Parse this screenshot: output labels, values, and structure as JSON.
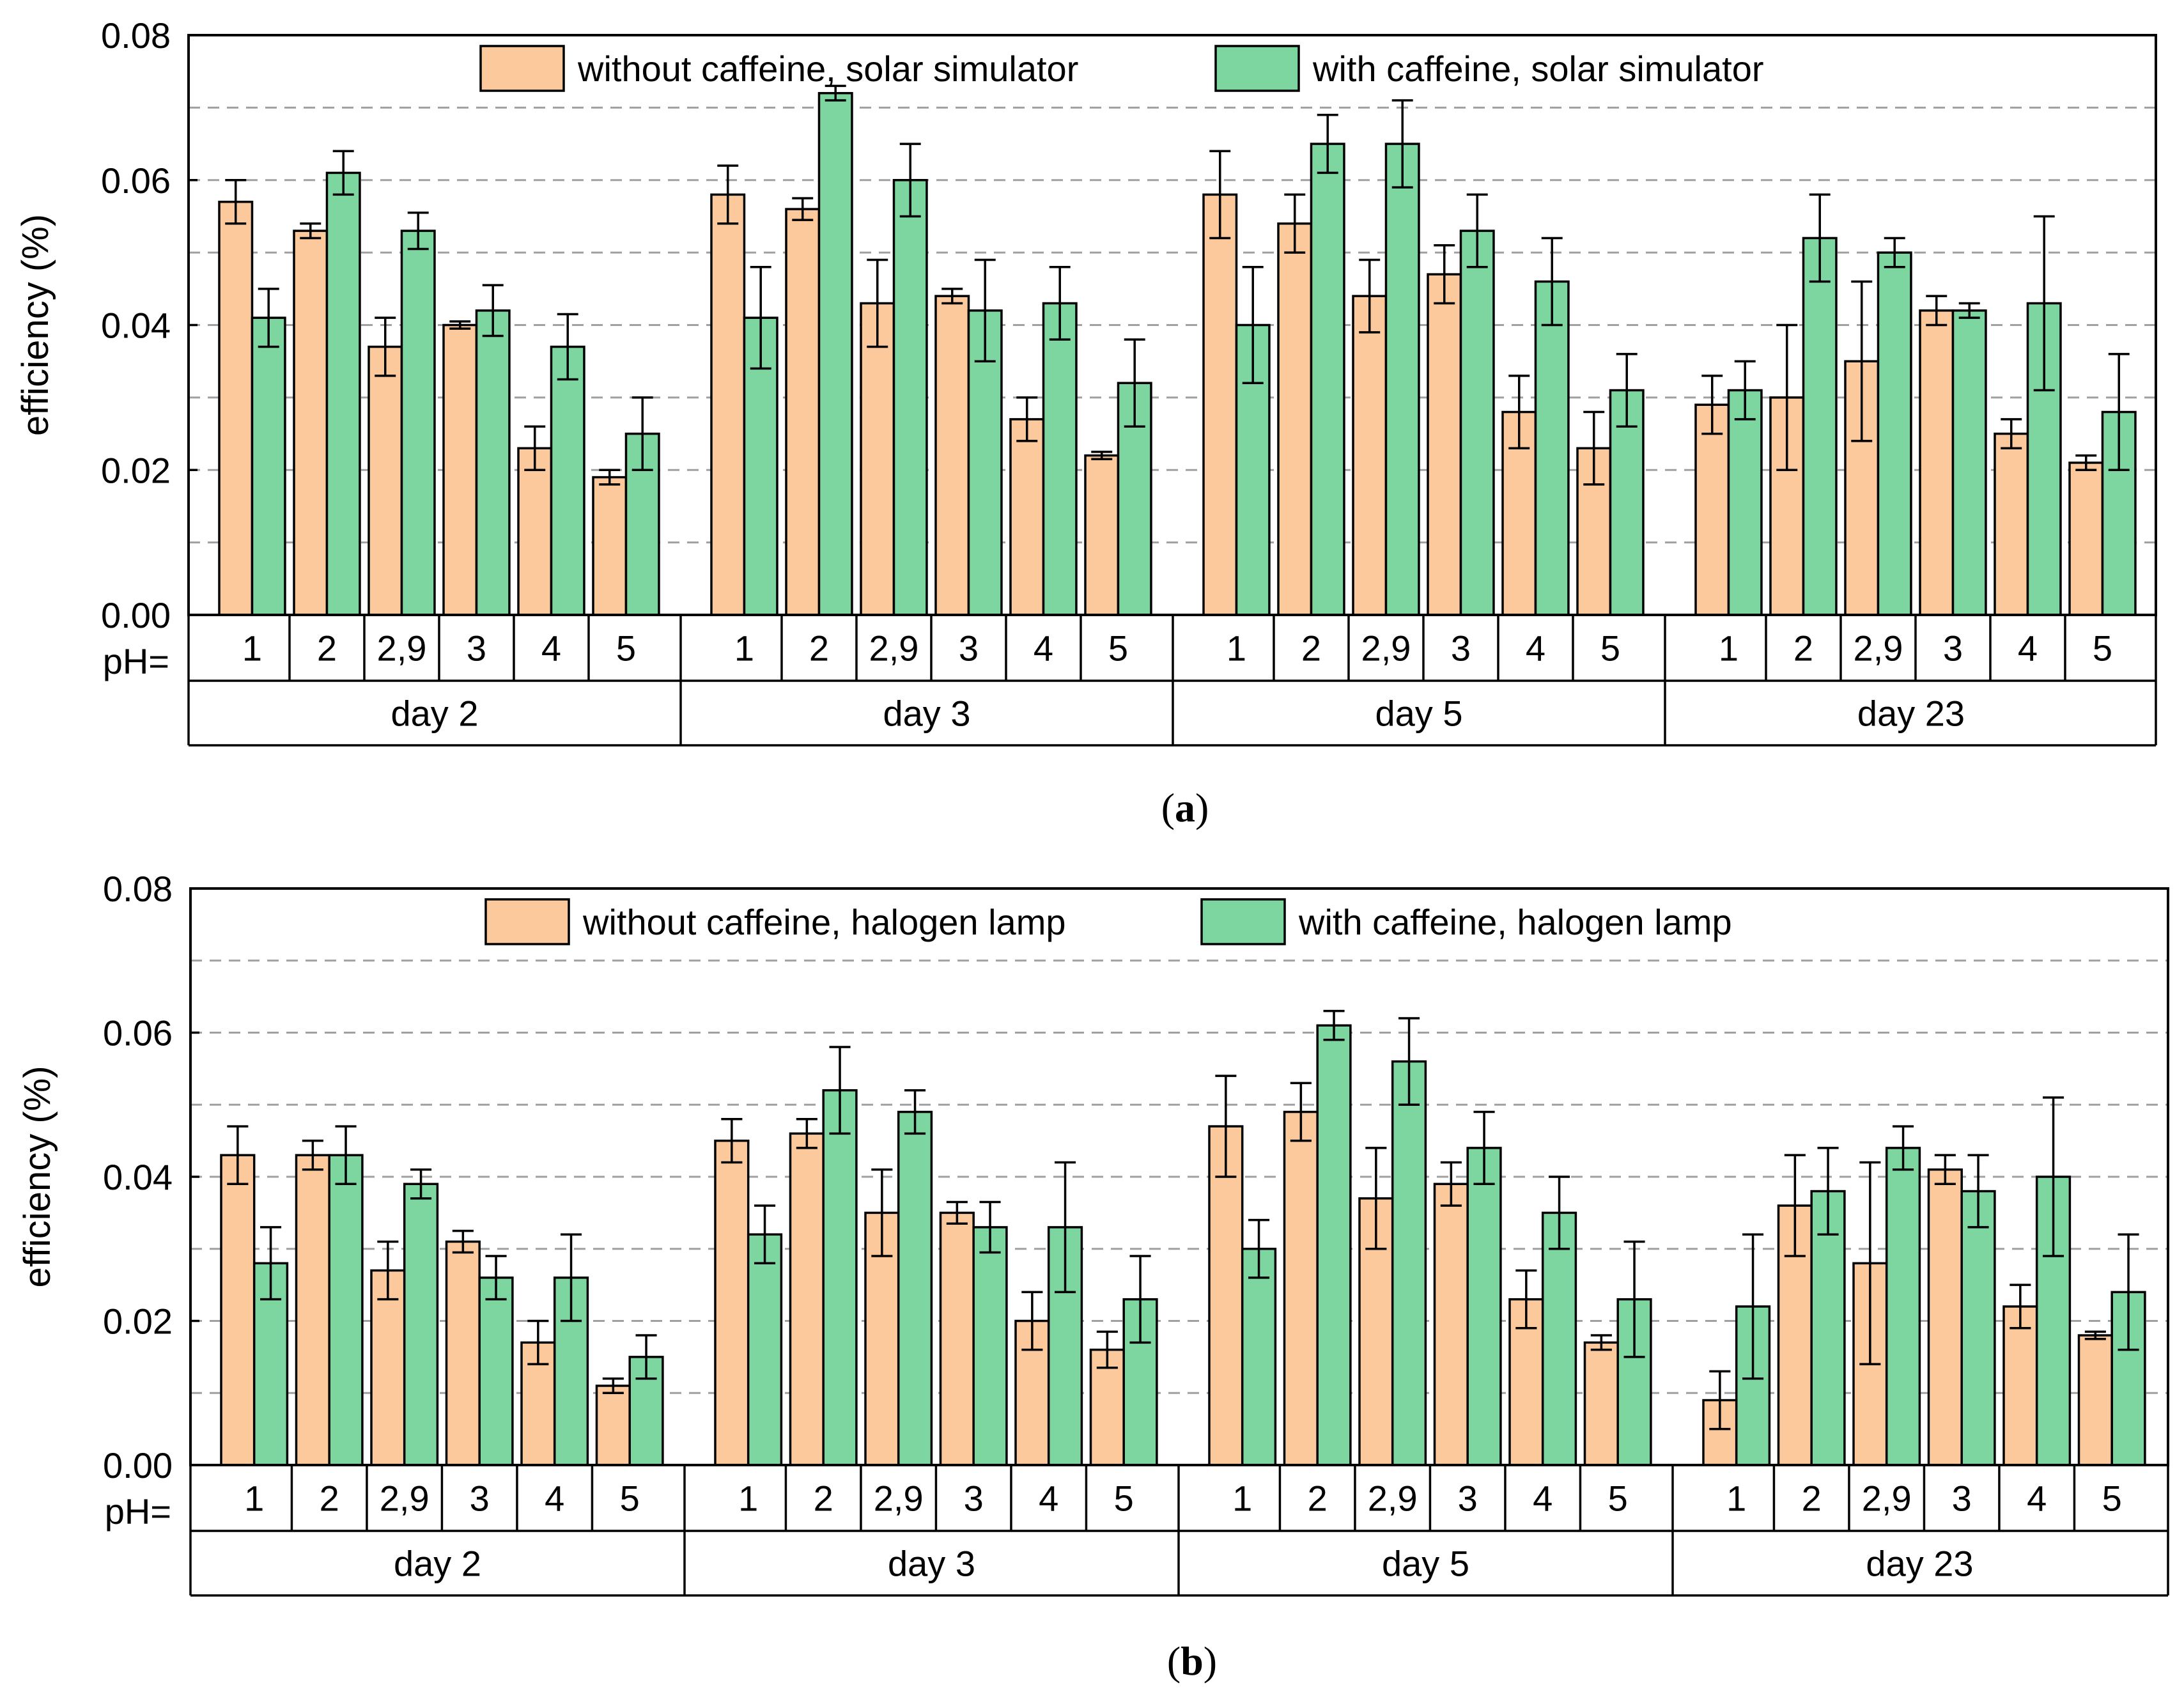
{
  "chart_data": [
    {
      "type": "bar",
      "panel": "(a)",
      "caption_open": "(",
      "caption_letter": "a",
      "caption_close": ")",
      "ylabel": "efficiency (%)",
      "ylim": [
        0,
        0.08
      ],
      "yticks": [
        "0.00",
        "0.02",
        "0.04",
        "0.06",
        "0.08"
      ],
      "ph_label": "pH=",
      "categories": [
        "1",
        "2",
        "2,9",
        "3",
        "4",
        "5"
      ],
      "groups": [
        "day 2",
        "day 3",
        "day 5",
        "day 23"
      ],
      "colors": {
        "without": "#fcc99c",
        "with": "#7dd69f"
      },
      "series": [
        {
          "name": "without caffeine, solar simulator",
          "key": "without",
          "values": [
            [
              0.057,
              0.053,
              0.037,
              0.04,
              0.023,
              0.019
            ],
            [
              0.058,
              0.056,
              0.043,
              0.044,
              0.027,
              0.022
            ],
            [
              0.058,
              0.054,
              0.044,
              0.047,
              0.028,
              0.023
            ],
            [
              0.029,
              0.03,
              0.035,
              0.042,
              0.025,
              0.021
            ]
          ],
          "errors": [
            [
              0.003,
              0.001,
              0.004,
              0.0005,
              0.003,
              0.001
            ],
            [
              0.004,
              0.0015,
              0.006,
              0.001,
              0.003,
              0.0005
            ],
            [
              0.006,
              0.004,
              0.005,
              0.004,
              0.005,
              0.005
            ],
            [
              0.004,
              0.01,
              0.011,
              0.002,
              0.002,
              0.001
            ]
          ]
        },
        {
          "name": "with caffeine, solar simulator",
          "key": "with",
          "values": [
            [
              0.041,
              0.061,
              0.053,
              0.042,
              0.037,
              0.025
            ],
            [
              0.041,
              0.072,
              0.06,
              0.042,
              0.043,
              0.032
            ],
            [
              0.04,
              0.065,
              0.065,
              0.053,
              0.046,
              0.031
            ],
            [
              0.031,
              0.052,
              0.05,
              0.042,
              0.043,
              0.028
            ]
          ],
          "errors": [
            [
              0.004,
              0.003,
              0.0025,
              0.0035,
              0.0045,
              0.005
            ],
            [
              0.007,
              0.001,
              0.005,
              0.007,
              0.005,
              0.006
            ],
            [
              0.008,
              0.004,
              0.006,
              0.005,
              0.006,
              0.005
            ],
            [
              0.004,
              0.006,
              0.002,
              0.001,
              0.012,
              0.008
            ]
          ]
        }
      ]
    },
    {
      "type": "bar",
      "panel": "(b)",
      "caption_open": "(",
      "caption_letter": "b",
      "caption_close": ")",
      "ylabel": "efficiency (%)",
      "ylim": [
        0,
        0.08
      ],
      "yticks": [
        "0.00",
        "0.02",
        "0.04",
        "0.06",
        "0.08"
      ],
      "ph_label": "pH=",
      "categories": [
        "1",
        "2",
        "2,9",
        "3",
        "4",
        "5"
      ],
      "groups": [
        "day 2",
        "day 3",
        "day 5",
        "day 23"
      ],
      "colors": {
        "without": "#fcc99c",
        "with": "#7dd69f"
      },
      "series": [
        {
          "name": "without caffeine, halogen lamp",
          "key": "without",
          "values": [
            [
              0.043,
              0.043,
              0.027,
              0.031,
              0.017,
              0.011
            ],
            [
              0.045,
              0.046,
              0.035,
              0.035,
              0.02,
              0.016
            ],
            [
              0.047,
              0.049,
              0.037,
              0.039,
              0.023,
              0.017
            ],
            [
              0.009,
              0.036,
              0.028,
              0.041,
              0.022,
              0.018
            ]
          ],
          "errors": [
            [
              0.004,
              0.002,
              0.004,
              0.0015,
              0.003,
              0.001
            ],
            [
              0.003,
              0.002,
              0.006,
              0.0015,
              0.004,
              0.0025
            ],
            [
              0.007,
              0.004,
              0.007,
              0.003,
              0.004,
              0.001
            ],
            [
              0.004,
              0.007,
              0.014,
              0.002,
              0.003,
              0.0005
            ]
          ]
        },
        {
          "name": "with caffeine, halogen lamp",
          "key": "with",
          "values": [
            [
              0.028,
              0.043,
              0.039,
              0.026,
              0.026,
              0.015
            ],
            [
              0.032,
              0.052,
              0.049,
              0.033,
              0.033,
              0.023
            ],
            [
              0.03,
              0.061,
              0.056,
              0.044,
              0.035,
              0.023
            ],
            [
              0.022,
              0.038,
              0.044,
              0.038,
              0.04,
              0.024
            ]
          ],
          "errors": [
            [
              0.005,
              0.004,
              0.002,
              0.003,
              0.006,
              0.003
            ],
            [
              0.004,
              0.006,
              0.003,
              0.0035,
              0.009,
              0.006
            ],
            [
              0.004,
              0.002,
              0.006,
              0.005,
              0.005,
              0.008
            ],
            [
              0.01,
              0.006,
              0.003,
              0.005,
              0.011,
              0.008
            ]
          ]
        }
      ]
    }
  ]
}
